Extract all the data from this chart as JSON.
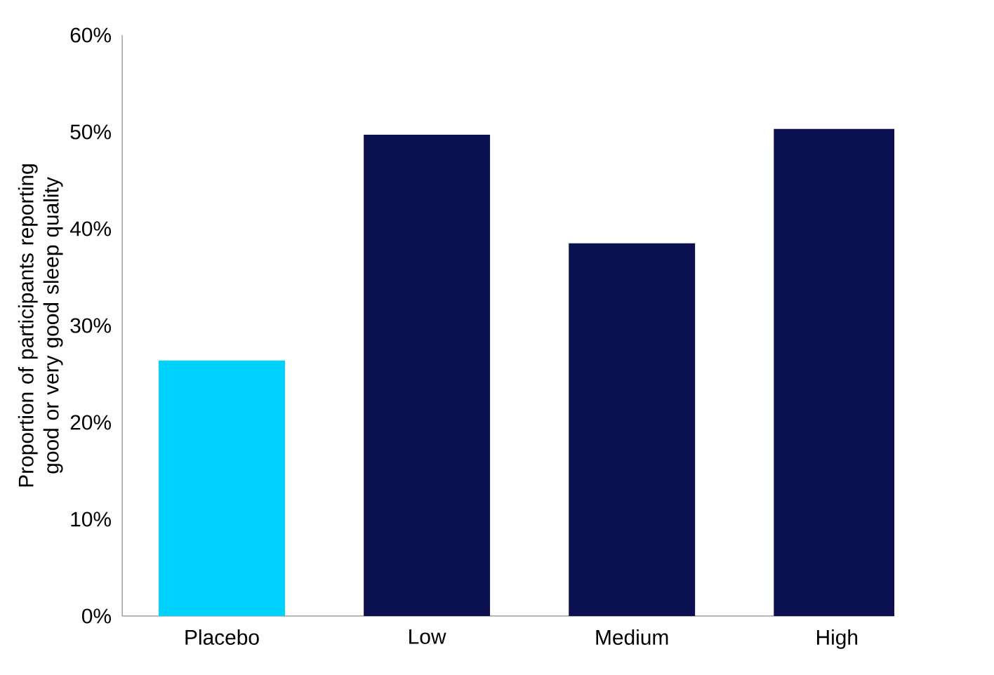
{
  "chart_data": {
    "type": "bar",
    "ylabel": "Proportion of participants reporting good or very good sleep quality",
    "categories": [
      "Placebo",
      "Low",
      "Medium",
      "High"
    ],
    "values": [
      26.4,
      49.7,
      38.5,
      50.3
    ],
    "colors": [
      "#00d2ff",
      "#0b1150",
      "#0b1150",
      "#0b1150"
    ],
    "ylim": [
      0,
      60
    ],
    "yticks": [
      {
        "value": 0,
        "label": "0%"
      },
      {
        "value": 10,
        "label": "10%"
      },
      {
        "value": 20,
        "label": "20%"
      },
      {
        "value": 30,
        "label": "30%"
      },
      {
        "value": 40,
        "label": "40%"
      },
      {
        "value": 50,
        "label": "50%"
      },
      {
        "value": 60,
        "label": "60%"
      }
    ],
    "grid": false
  }
}
